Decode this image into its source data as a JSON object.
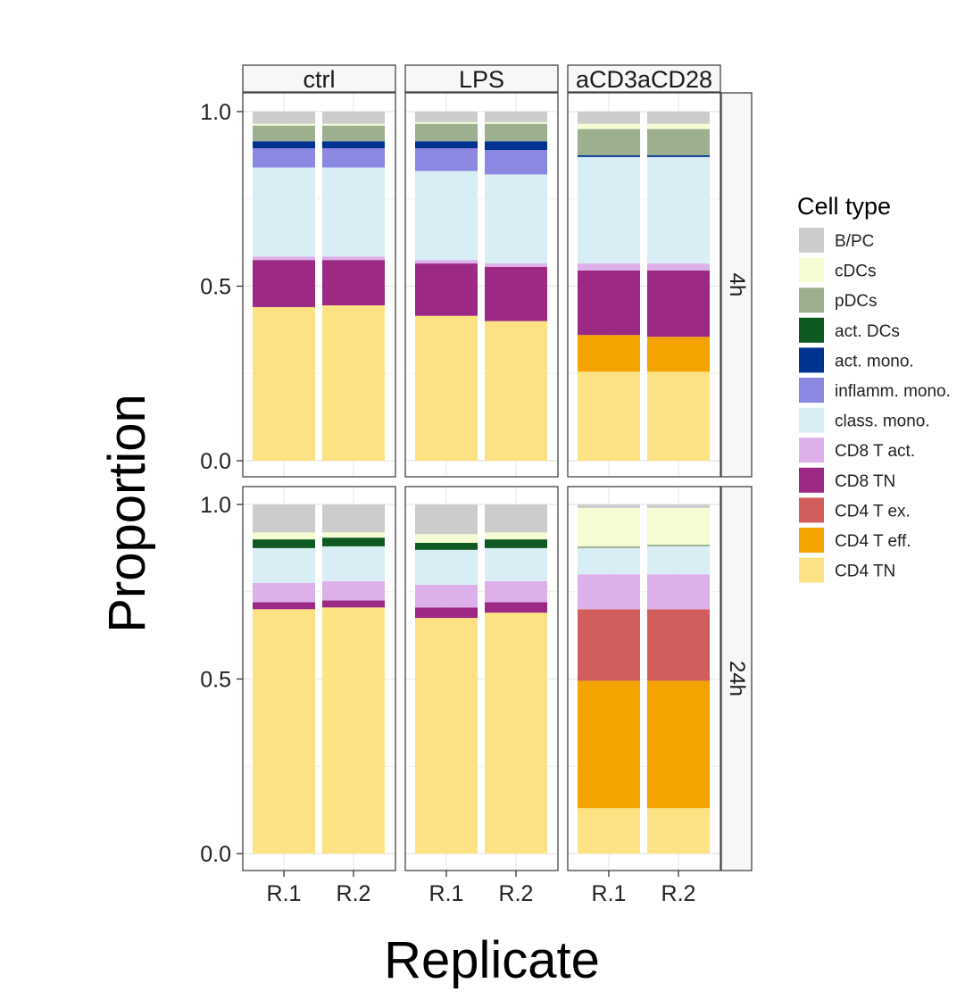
{
  "chart_data": {
    "type": "bar",
    "stacked": true,
    "faceted": true,
    "xlabel": "Replicate",
    "ylabel": "Proportion",
    "ylim": [
      0,
      1
    ],
    "y_ticks": [
      "0.0",
      "0.5",
      "1.0"
    ],
    "grid": true,
    "legend_position": "right",
    "legend_title": "Cell type",
    "categories": [
      "R.1",
      "R.2"
    ],
    "column_facets": [
      "ctrl",
      "LPS",
      "aCD3aCD28"
    ],
    "row_facets": [
      "4h",
      "24h"
    ],
    "cell_types": [
      {
        "name": "B/PC",
        "color": "#cccccc"
      },
      {
        "name": "cDCs",
        "color": "#f4fcd4"
      },
      {
        "name": "pDCs",
        "color": "#9caf8f"
      },
      {
        "name": "act. DCs",
        "color": "#0f5a22"
      },
      {
        "name": "act. mono.",
        "color": "#003390"
      },
      {
        "name": "inflamm. mono.",
        "color": "#8a88e0"
      },
      {
        "name": "class. mono.",
        "color": "#d9eef4"
      },
      {
        "name": "CD8 T act.",
        "color": "#deb0ea"
      },
      {
        "name": "CD8 TN",
        "color": "#9c2a85"
      },
      {
        "name": "CD4 T ex.",
        "color": "#d15e5c"
      },
      {
        "name": "CD4 T eff.",
        "color": "#f5a300"
      },
      {
        "name": "CD4 TN",
        "color": "#fde283"
      }
    ],
    "stack_order_bottom_to_top": [
      "CD4 TN",
      "CD4 T eff.",
      "CD4 T ex.",
      "CD8 TN",
      "CD8 T act.",
      "class. mono.",
      "inflamm. mono.",
      "act. mono.",
      "act. DCs",
      "pDCs",
      "cDCs",
      "B/PC"
    ],
    "panels": [
      {
        "condition": "ctrl",
        "time": "4h",
        "bars": [
          {
            "replicate": "R.1",
            "values": {
              "CD4 TN": 0.44,
              "CD4 T eff.": 0.0,
              "CD4 T ex.": 0.0,
              "CD8 TN": 0.135,
              "CD8 T act.": 0.01,
              "class. mono.": 0.255,
              "inflamm. mono.": 0.055,
              "act. mono.": 0.02,
              "act. DCs": 0.0,
              "pDCs": 0.045,
              "cDCs": 0.005,
              "B/PC": 0.035
            }
          },
          {
            "replicate": "R.2",
            "values": {
              "CD4 TN": 0.445,
              "CD4 T eff.": 0.0,
              "CD4 T ex.": 0.0,
              "CD8 TN": 0.13,
              "CD8 T act.": 0.01,
              "class. mono.": 0.255,
              "inflamm. mono.": 0.055,
              "act. mono.": 0.02,
              "act. DCs": 0.0,
              "pDCs": 0.045,
              "cDCs": 0.005,
              "B/PC": 0.035
            }
          }
        ]
      },
      {
        "condition": "LPS",
        "time": "4h",
        "bars": [
          {
            "replicate": "R.1",
            "values": {
              "CD4 TN": 0.415,
              "CD4 T eff.": 0.0,
              "CD4 T ex.": 0.0,
              "CD8 TN": 0.15,
              "CD8 T act.": 0.01,
              "class. mono.": 0.255,
              "inflamm. mono.": 0.065,
              "act. mono.": 0.02,
              "act. DCs": 0.0,
              "pDCs": 0.05,
              "cDCs": 0.005,
              "B/PC": 0.03
            }
          },
          {
            "replicate": "R.2",
            "values": {
              "CD4 TN": 0.4,
              "CD4 T eff.": 0.0,
              "CD4 T ex.": 0.0,
              "CD8 TN": 0.155,
              "CD8 T act.": 0.01,
              "class. mono.": 0.255,
              "inflamm. mono.": 0.07,
              "act. mono.": 0.025,
              "act. DCs": 0.0,
              "pDCs": 0.05,
              "cDCs": 0.005,
              "B/PC": 0.03
            }
          }
        ]
      },
      {
        "condition": "aCD3aCD28",
        "time": "4h",
        "bars": [
          {
            "replicate": "R.1",
            "values": {
              "CD4 TN": 0.255,
              "CD4 T eff.": 0.105,
              "CD4 T ex.": 0.0,
              "CD8 TN": 0.185,
              "CD8 T act.": 0.02,
              "class. mono.": 0.305,
              "inflamm. mono.": 0.0,
              "act. mono.": 0.005,
              "act. DCs": 0.0,
              "pDCs": 0.075,
              "cDCs": 0.015,
              "B/PC": 0.035
            }
          },
          {
            "replicate": "R.2",
            "values": {
              "CD4 TN": 0.255,
              "CD4 T eff.": 0.1,
              "CD4 T ex.": 0.0,
              "CD8 TN": 0.19,
              "CD8 T act.": 0.02,
              "class. mono.": 0.305,
              "inflamm. mono.": 0.0,
              "act. mono.": 0.005,
              "act. DCs": 0.0,
              "pDCs": 0.075,
              "cDCs": 0.015,
              "B/PC": 0.035
            }
          }
        ]
      },
      {
        "condition": "ctrl",
        "time": "24h",
        "bars": [
          {
            "replicate": "R.1",
            "values": {
              "CD4 TN": 0.7,
              "CD4 T eff.": 0.0,
              "CD4 T ex.": 0.0,
              "CD8 TN": 0.02,
              "CD8 T act.": 0.055,
              "class. mono.": 0.1,
              "inflamm. mono.": 0.0,
              "act. mono.": 0.0,
              "act. DCs": 0.025,
              "pDCs": 0.0,
              "cDCs": 0.02,
              "B/PC": 0.08
            }
          },
          {
            "replicate": "R.2",
            "values": {
              "CD4 TN": 0.705,
              "CD4 T eff.": 0.0,
              "CD4 T ex.": 0.0,
              "CD8 TN": 0.02,
              "CD8 T act.": 0.055,
              "class. mono.": 0.1,
              "inflamm. mono.": 0.0,
              "act. mono.": 0.0,
              "act. DCs": 0.025,
              "pDCs": 0.0,
              "cDCs": 0.015,
              "B/PC": 0.08
            }
          }
        ]
      },
      {
        "condition": "LPS",
        "time": "24h",
        "bars": [
          {
            "replicate": "R.1",
            "values": {
              "CD4 TN": 0.675,
              "CD4 T eff.": 0.0,
              "CD4 T ex.": 0.0,
              "CD8 TN": 0.03,
              "CD8 T act.": 0.065,
              "class. mono.": 0.1,
              "inflamm. mono.": 0.0,
              "act. mono.": 0.0,
              "act. DCs": 0.02,
              "pDCs": 0.0,
              "cDCs": 0.025,
              "B/PC": 0.085
            }
          },
          {
            "replicate": "R.2",
            "values": {
              "CD4 TN": 0.69,
              "CD4 T eff.": 0.0,
              "CD4 T ex.": 0.0,
              "CD8 TN": 0.03,
              "CD8 T act.": 0.06,
              "class. mono.": 0.095,
              "inflamm. mono.": 0.0,
              "act. mono.": 0.0,
              "act. DCs": 0.025,
              "pDCs": 0.0,
              "cDCs": 0.02,
              "B/PC": 0.08
            }
          }
        ]
      },
      {
        "condition": "aCD3aCD28",
        "time": "24h",
        "bars": [
          {
            "replicate": "R.1",
            "values": {
              "CD4 TN": 0.13,
              "CD4 T eff.": 0.365,
              "CD4 T ex.": 0.205,
              "CD8 TN": 0.0,
              "CD8 T act.": 0.1,
              "class. mono.": 0.075,
              "inflamm. mono.": 0.0,
              "act. mono.": 0.0,
              "act. DCs": 0.0,
              "pDCs": 0.005,
              "cDCs": 0.11,
              "B/PC": 0.01
            }
          },
          {
            "replicate": "R.2",
            "values": {
              "CD4 TN": 0.13,
              "CD4 T eff.": 0.365,
              "CD4 T ex.": 0.205,
              "CD8 TN": 0.0,
              "CD8 T act.": 0.1,
              "class. mono.": 0.08,
              "inflamm. mono.": 0.0,
              "act. mono.": 0.0,
              "act. DCs": 0.0,
              "pDCs": 0.005,
              "cDCs": 0.105,
              "B/PC": 0.01
            }
          }
        ]
      }
    ]
  }
}
